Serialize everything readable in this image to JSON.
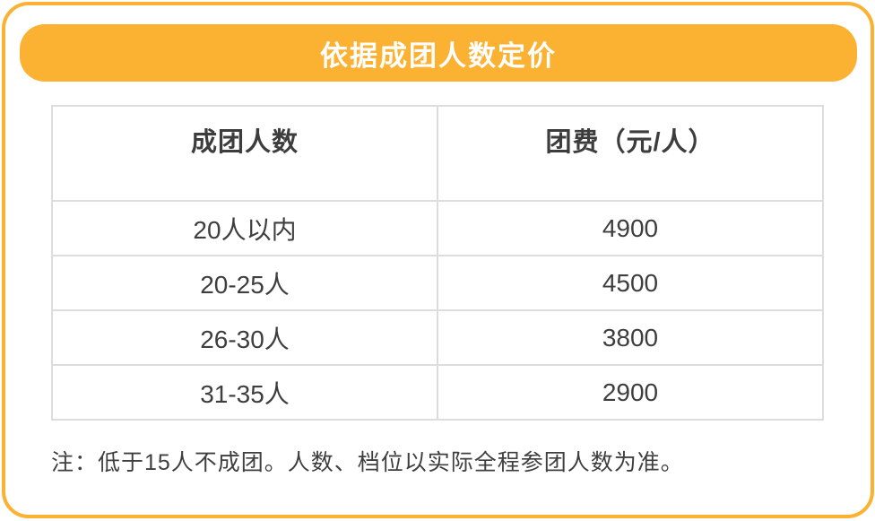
{
  "colors": {
    "accent_orange": "#FBB132",
    "table_border_gray": "#DDDDDD",
    "text_dark": "#3D3D3D",
    "title_text_white": "#FFFFFF",
    "background": "#FFFFFF"
  },
  "banner": {
    "title": "依据成团人数定价"
  },
  "pricing_table": {
    "headers": [
      "成团人数",
      "团费（元/人）"
    ],
    "rows": [
      {
        "group_size": "20人以内",
        "fee": "4900"
      },
      {
        "group_size": "20-25人",
        "fee": "4500"
      },
      {
        "group_size": "26-30人",
        "fee": "3800"
      },
      {
        "group_size": "31-35人",
        "fee": "2900"
      }
    ]
  },
  "note": "注：低于15人不成团。人数、档位以实际全程参团人数为准。"
}
